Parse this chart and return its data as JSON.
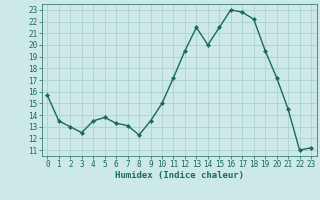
{
  "x": [
    0,
    1,
    2,
    3,
    4,
    5,
    6,
    7,
    8,
    9,
    10,
    11,
    12,
    13,
    14,
    15,
    16,
    17,
    18,
    19,
    20,
    21,
    22,
    23
  ],
  "y": [
    15.7,
    13.5,
    13.0,
    12.5,
    13.5,
    13.8,
    13.3,
    13.1,
    12.3,
    13.5,
    15.0,
    17.2,
    19.5,
    21.5,
    20.0,
    21.5,
    23.0,
    22.8,
    22.2,
    19.5,
    17.2,
    14.5,
    11.0,
    11.2
  ],
  "line_color": "#1a6b5a",
  "marker": "D",
  "marker_size": 2,
  "bg_color": "#cce8e8",
  "grid_color": "#a8cccc",
  "xlabel": "Humidex (Indice chaleur)",
  "ylabel_ticks": [
    11,
    12,
    13,
    14,
    15,
    16,
    17,
    18,
    19,
    20,
    21,
    22,
    23
  ],
  "xtick_labels": [
    "0",
    "1",
    "2",
    "3",
    "4",
    "5",
    "6",
    "7",
    "8",
    "9",
    "10",
    "11",
    "12",
    "13",
    "14",
    "15",
    "16",
    "17",
    "18",
    "19",
    "20",
    "21",
    "22",
    "23"
  ],
  "ylim": [
    10.5,
    23.5
  ],
  "xlim": [
    -0.5,
    23.5
  ],
  "tick_color": "#1a6b5a",
  "label_color": "#1a6b5a",
  "tick_fontsize": 5.5,
  "xlabel_fontsize": 6.5,
  "linewidth": 1.0
}
